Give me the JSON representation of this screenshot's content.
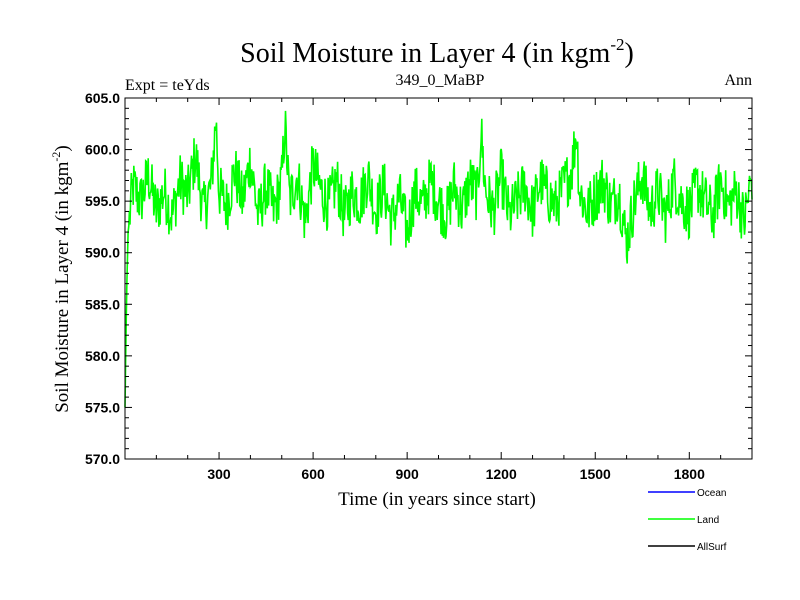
{
  "chart_data": {
    "type": "line",
    "title": "Soil Moisture in Layer 4 (in kgm",
    "title_sup": "-2",
    "title_suffix": ")",
    "subtitle_left": "Expt = teYds",
    "subtitle_center": "349_0_MaBP",
    "subtitle_right": "Ann",
    "xlabel": "Time (in years since start)",
    "ylabel": "Soil Moisture in Layer 4 (in kgm",
    "ylabel_sup": "-2",
    "ylabel_suffix": ")",
    "xlim": [
      0,
      2000
    ],
    "ylim": [
      570,
      605
    ],
    "xticks": [
      300,
      600,
      900,
      1200,
      1500,
      1800
    ],
    "xtick_labels": [
      "300",
      "600",
      "900",
      "1200",
      "1500",
      "1800"
    ],
    "yticks": [
      570,
      575,
      580,
      585,
      590,
      595,
      600,
      605
    ],
    "ytick_labels": [
      "570.0",
      "575.0",
      "580.0",
      "585.0",
      "590.0",
      "595.0",
      "600.0",
      "605.0"
    ],
    "grid": false,
    "legend_position": "bottom-right",
    "series": [
      {
        "name": "Ocean",
        "color": "#0000ff",
        "values": []
      },
      {
        "name": "Land",
        "color": "#00ff00",
        "note": "annual values, sampled every 25 years; initial spin-up from ~575 to ~592 in first ~10 years, then noisy around ~595.5 (range ~588-603)",
        "x": [
          0,
          5,
          10,
          25,
          50,
          75,
          100,
          125,
          150,
          175,
          200,
          225,
          250,
          275,
          290,
          300,
          325,
          350,
          375,
          400,
          425,
          450,
          475,
          500,
          510,
          525,
          550,
          575,
          600,
          625,
          650,
          675,
          700,
          725,
          750,
          775,
          800,
          825,
          850,
          875,
          900,
          925,
          950,
          975,
          1000,
          1025,
          1050,
          1075,
          1100,
          1125,
          1135,
          1150,
          1175,
          1200,
          1225,
          1250,
          1275,
          1300,
          1325,
          1350,
          1375,
          1400,
          1425,
          1440,
          1450,
          1475,
          1500,
          1525,
          1550,
          1575,
          1600,
          1625,
          1650,
          1675,
          1700,
          1725,
          1750,
          1775,
          1800,
          1825,
          1850,
          1875,
          1900,
          1925,
          1950,
          1975,
          2000
        ],
        "values": [
          575.0,
          586.0,
          592.0,
          596.5,
          595.0,
          597.5,
          594.0,
          596.0,
          593.5,
          597.0,
          595.5,
          599.5,
          594.0,
          596.5,
          603.0,
          596.0,
          594.5,
          598.0,
          595.0,
          599.0,
          593.5,
          596.5,
          594.0,
          597.0,
          602.5,
          595.0,
          597.5,
          593.0,
          598.5,
          596.0,
          594.5,
          597.0,
          593.5,
          596.0,
          595.0,
          597.5,
          594.0,
          596.5,
          593.0,
          595.5,
          592.0,
          596.0,
          594.5,
          597.0,
          595.0,
          593.5,
          596.5,
          594.0,
          597.0,
          595.5,
          602.0,
          596.0,
          594.0,
          597.5,
          593.5,
          595.0,
          596.5,
          594.0,
          597.0,
          595.5,
          594.5,
          596.5,
          598.0,
          602.0,
          596.0,
          594.0,
          595.5,
          597.0,
          594.5,
          596.0,
          591.0,
          595.0,
          597.5,
          594.0,
          596.0,
          593.5,
          597.0,
          595.0,
          594.0,
          596.5,
          595.0,
          593.5,
          597.0,
          594.5,
          596.0,
          593.0,
          597.5
        ]
      },
      {
        "name": "AllSurf",
        "color": "#000000",
        "values": []
      }
    ]
  }
}
